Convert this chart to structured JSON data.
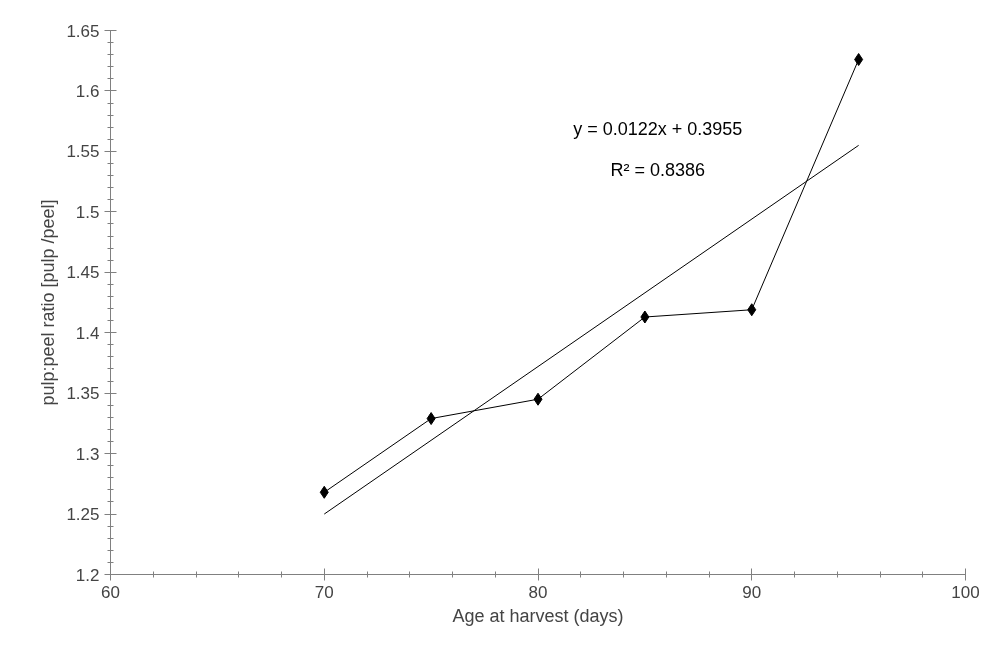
{
  "chart_data": {
    "type": "line",
    "xlabel": "Age at harvest (days)",
    "ylabel": "pulp:peel ratio [pulp /peel]",
    "x": [
      70,
      75,
      80,
      85,
      90,
      95
    ],
    "series": [
      {
        "type": "line",
        "color": "#000000",
        "marker": "diamond",
        "values": [
          1.268,
          1.329,
          1.345,
          1.413,
          1.419,
          1.626
        ]
      },
      {
        "type": "line",
        "color": "#000000",
        "marker": "none",
        "x": [
          70,
          95
        ],
        "values": [
          1.25,
          1.555
        ]
      }
    ],
    "annotations": [
      "y = 0.0122x + 0.3955",
      "R² = 0.8386"
    ],
    "xlim": [
      60,
      100
    ],
    "xticks": [
      60,
      70,
      80,
      90,
      100
    ],
    "ylim": [
      1.2,
      1.65
    ],
    "yticks": [
      1.2,
      1.25,
      1.3,
      1.35,
      1.4,
      1.45,
      1.5,
      1.55,
      1.6,
      1.65
    ],
    "grid": false
  }
}
